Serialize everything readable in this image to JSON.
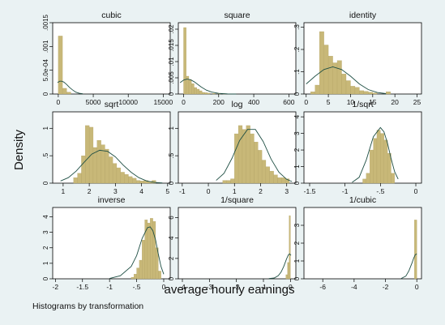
{
  "figure": {
    "ylabel": "Density",
    "xlabel": "average hourly earnings",
    "note": "Histograms by transformation"
  },
  "colors": {
    "page_bg": "#eaf2f3",
    "panel_bg": "#ffffff",
    "bar": "#c8b878",
    "bar_stroke": "#b0a060",
    "curve": "#1f4f44"
  },
  "chart_data": [
    {
      "type": "bar",
      "title": "cubic",
      "xlim": [
        -800,
        16000
      ],
      "ylim": [
        0,
        0.0015
      ],
      "xticks": [
        {
          "v": 0,
          "l": "0"
        },
        {
          "v": 5000,
          "l": "5000"
        },
        {
          "v": 10000,
          "l": "10000"
        },
        {
          "v": 15000,
          "l": "15000"
        }
      ],
      "yticks": [
        {
          "v": 0,
          "l": "0"
        },
        {
          "v": 0.0005,
          "l": "5.0e-04"
        },
        {
          "v": 0.001,
          "l": ".001"
        },
        {
          "v": 0.0015,
          "l": ".0015"
        }
      ],
      "bars": [
        [
          0,
          600,
          0.00122
        ],
        [
          600,
          1200,
          0.00012
        ],
        [
          1200,
          1800,
          4e-05
        ]
      ],
      "curve": {
        "x": [
          -100,
          200,
          500,
          800,
          1200,
          1600,
          2000,
          2500,
          3000,
          3500
        ],
        "y": [
          0.00024,
          0.00027,
          0.00027,
          0.00025,
          0.0002,
          0.00014,
          9e-05,
          4e-05,
          1.5e-05,
          5e-06
        ]
      }
    },
    {
      "type": "bar",
      "title": "square",
      "xlim": [
        -30,
        640
      ],
      "ylim": [
        0,
        0.022
      ],
      "xticks": [
        {
          "v": 0,
          "l": "0"
        },
        {
          "v": 200,
          "l": "200"
        },
        {
          "v": 400,
          "l": "400"
        },
        {
          "v": 600,
          "l": "600"
        }
      ],
      "yticks": [
        {
          "v": 0,
          "l": "0"
        },
        {
          "v": 0.005,
          "l": ".005"
        },
        {
          "v": 0.01,
          "l": ".01"
        },
        {
          "v": 0.015,
          "l": ".015"
        },
        {
          "v": 0.02,
          "l": ".02"
        }
      ],
      "bars": [
        [
          0,
          15,
          0.0205
        ],
        [
          15,
          30,
          0.0055
        ],
        [
          30,
          45,
          0.0045
        ],
        [
          45,
          60,
          0.0032
        ],
        [
          60,
          75,
          0.002
        ],
        [
          75,
          90,
          0.0015
        ],
        [
          90,
          105,
          0.001
        ],
        [
          105,
          120,
          0.0005
        ],
        [
          120,
          135,
          0.0004
        ],
        [
          135,
          150,
          0.0003
        ],
        [
          165,
          180,
          0.0002
        ],
        [
          195,
          210,
          0.0001
        ],
        [
          225,
          240,
          0.0001
        ]
      ],
      "curve": {
        "x": [
          -20,
          0,
          20,
          40,
          60,
          80,
          100,
          130,
          160,
          200,
          250,
          300
        ],
        "y": [
          0.0035,
          0.0043,
          0.0046,
          0.0044,
          0.0038,
          0.003,
          0.0022,
          0.0012,
          0.0006,
          0.0002,
          5e-05,
          1e-05
        ]
      }
    },
    {
      "type": "bar",
      "title": "identity",
      "xlim": [
        -0.5,
        26
      ],
      "ylim": [
        0,
        0.32
      ],
      "xticks": [
        {
          "v": 0,
          "l": "0"
        },
        {
          "v": 5,
          "l": "5"
        },
        {
          "v": 10,
          "l": "10"
        },
        {
          "v": 15,
          "l": "15"
        },
        {
          "v": 20,
          "l": "20"
        },
        {
          "v": 25,
          "l": "25"
        }
      ],
      "yticks": [
        {
          "v": 0,
          "l": "0"
        },
        {
          "v": 0.1,
          "l": ".1"
        },
        {
          "v": 0.2,
          "l": ".2"
        },
        {
          "v": 0.3,
          "l": ".3"
        }
      ],
      "bars": [
        [
          1,
          2,
          0.01
        ],
        [
          2,
          3,
          0.04
        ],
        [
          3,
          4,
          0.28
        ],
        [
          4,
          5,
          0.22
        ],
        [
          5,
          6,
          0.17
        ],
        [
          6,
          7,
          0.14
        ],
        [
          7,
          8,
          0.15
        ],
        [
          8,
          9,
          0.09
        ],
        [
          9,
          10,
          0.06
        ],
        [
          10,
          11,
          0.035
        ],
        [
          11,
          12,
          0.03
        ],
        [
          12,
          13,
          0.015
        ],
        [
          13,
          14,
          0.012
        ],
        [
          14,
          15,
          0.008
        ],
        [
          15,
          16,
          0.005
        ],
        [
          18,
          19,
          0.01
        ]
      ],
      "curve": {
        "x": [
          0,
          2,
          4,
          6,
          8,
          10,
          12,
          14,
          16,
          18
        ],
        "y": [
          0.045,
          0.08,
          0.11,
          0.122,
          0.11,
          0.08,
          0.045,
          0.02,
          0.007,
          0.002
        ]
      }
    },
    {
      "type": "bar",
      "title": "sqrt",
      "xlim": [
        0.6,
        5.1
      ],
      "ylim": [
        0,
        1.3
      ],
      "xticks": [
        {
          "v": 1,
          "l": "1"
        },
        {
          "v": 2,
          "l": "2"
        },
        {
          "v": 3,
          "l": "3"
        },
        {
          "v": 4,
          "l": "4"
        },
        {
          "v": 5,
          "l": "5"
        }
      ],
      "yticks": [
        {
          "v": 0,
          "l": "0"
        },
        {
          "v": 0.5,
          "l": ".5"
        },
        {
          "v": 1,
          "l": "1"
        }
      ],
      "bars": [
        [
          1.4,
          1.55,
          0.1
        ],
        [
          1.55,
          1.7,
          0.18
        ],
        [
          1.7,
          1.85,
          0.5
        ],
        [
          1.85,
          2.0,
          1.05
        ],
        [
          2.0,
          2.15,
          1.02
        ],
        [
          2.15,
          2.3,
          0.65
        ],
        [
          2.3,
          2.45,
          0.78
        ],
        [
          2.45,
          2.6,
          0.7
        ],
        [
          2.6,
          2.75,
          0.62
        ],
        [
          2.75,
          2.9,
          0.48
        ],
        [
          2.9,
          3.05,
          0.36
        ],
        [
          3.05,
          3.2,
          0.28
        ],
        [
          3.2,
          3.35,
          0.2
        ],
        [
          3.35,
          3.5,
          0.16
        ],
        [
          3.5,
          3.65,
          0.12
        ],
        [
          3.65,
          3.8,
          0.09
        ],
        [
          3.8,
          3.95,
          0.05
        ],
        [
          3.95,
          4.1,
          0.04
        ],
        [
          4.1,
          4.25,
          0.05
        ],
        [
          4.25,
          4.4,
          0.03
        ],
        [
          4.4,
          4.55,
          0.05
        ]
      ],
      "curve": {
        "x": [
          0.9,
          1.2,
          1.5,
          1.8,
          2.1,
          2.4,
          2.7,
          3.0,
          3.3,
          3.6,
          3.9,
          4.2,
          4.5,
          4.8
        ],
        "y": [
          0.04,
          0.1,
          0.22,
          0.38,
          0.53,
          0.6,
          0.58,
          0.48,
          0.33,
          0.2,
          0.1,
          0.04,
          0.014,
          0.004
        ]
      }
    },
    {
      "type": "bar",
      "title": "log",
      "xlim": [
        -1.15,
        3.35
      ],
      "ylim": [
        0,
        1.3
      ],
      "xticks": [
        {
          "v": -1,
          "l": "-1"
        },
        {
          "v": 0,
          "l": "0"
        },
        {
          "v": 1,
          "l": "1"
        },
        {
          "v": 2,
          "l": "2"
        },
        {
          "v": 3,
          "l": "3"
        }
      ],
      "yticks": [
        {
          "v": 0,
          "l": "0"
        },
        {
          "v": 0.5,
          "l": ".5"
        },
        {
          "v": 1,
          "l": "1"
        }
      ],
      "bars": [
        [
          0.55,
          0.7,
          0.05
        ],
        [
          0.7,
          0.85,
          0.05
        ],
        [
          0.85,
          1.0,
          0.08
        ],
        [
          1.0,
          1.15,
          0.9
        ],
        [
          1.15,
          1.3,
          1.05
        ],
        [
          1.3,
          1.45,
          0.98
        ],
        [
          1.45,
          1.6,
          1.05
        ],
        [
          1.6,
          1.75,
          0.9
        ],
        [
          1.75,
          1.9,
          0.75
        ],
        [
          1.9,
          2.05,
          0.6
        ],
        [
          2.05,
          2.2,
          0.42
        ],
        [
          2.2,
          2.35,
          0.3
        ],
        [
          2.35,
          2.5,
          0.22
        ],
        [
          2.5,
          2.65,
          0.15
        ],
        [
          2.65,
          2.8,
          0.1
        ],
        [
          2.8,
          2.95,
          0.1
        ],
        [
          2.95,
          3.1,
          0.08
        ]
      ],
      "curve": {
        "x": [
          0.3,
          0.6,
          0.9,
          1.2,
          1.5,
          1.8,
          2.1,
          2.4,
          2.7,
          3.0,
          3.2
        ],
        "y": [
          0.05,
          0.18,
          0.45,
          0.78,
          0.98,
          0.98,
          0.76,
          0.44,
          0.2,
          0.07,
          0.03
        ]
      }
    },
    {
      "type": "bar",
      "title": "1/sqrt",
      "xlim": [
        -1.58,
        0.08
      ],
      "ylim": [
        0,
        4.3
      ],
      "xticks": [
        {
          "v": -1.5,
          "l": "-1.5"
        },
        {
          "v": -1,
          "l": "-1"
        },
        {
          "v": -0.5,
          "l": "-.5"
        },
        {
          "v": 0,
          "l": "0"
        }
      ],
      "yticks": [
        {
          "v": 0,
          "l": "0"
        },
        {
          "v": 1,
          "l": "1"
        },
        {
          "v": 2,
          "l": "2"
        },
        {
          "v": 3,
          "l": "3"
        },
        {
          "v": 4,
          "l": "4"
        }
      ],
      "bars": [
        [
          -0.75,
          -0.7,
          0.25
        ],
        [
          -0.7,
          -0.65,
          0.6
        ],
        [
          -0.65,
          -0.6,
          2.0
        ],
        [
          -0.6,
          -0.55,
          2.7
        ],
        [
          -0.55,
          -0.5,
          3.2
        ],
        [
          -0.5,
          -0.45,
          3.0
        ],
        [
          -0.45,
          -0.4,
          2.6
        ],
        [
          -0.4,
          -0.35,
          1.8
        ],
        [
          -0.35,
          -0.3,
          0.6
        ]
      ],
      "curve": {
        "x": [
          -0.9,
          -0.8,
          -0.7,
          -0.6,
          -0.5,
          -0.45,
          -0.4,
          -0.35,
          -0.3,
          -0.25
        ],
        "y": [
          0.05,
          0.35,
          1.4,
          2.8,
          3.35,
          3.1,
          2.4,
          1.5,
          0.7,
          0.25
        ]
      }
    },
    {
      "type": "bar",
      "title": "inverse",
      "xlim": [
        -2.05,
        0.12
      ],
      "ylim": [
        0,
        4.6
      ],
      "xticks": [
        {
          "v": -2,
          "l": "-2"
        },
        {
          "v": -1.5,
          "l": "-1.5"
        },
        {
          "v": -1,
          "l": "-1"
        },
        {
          "v": -0.5,
          "l": "-.5"
        },
        {
          "v": 0,
          "l": "0"
        }
      ],
      "yticks": [
        {
          "v": 0,
          "l": "0"
        },
        {
          "v": 1,
          "l": "1"
        },
        {
          "v": 2,
          "l": "2"
        },
        {
          "v": 3,
          "l": "3"
        },
        {
          "v": 4,
          "l": "4"
        }
      ],
      "bars": [
        [
          -0.6,
          -0.55,
          0.1
        ],
        [
          -0.55,
          -0.5,
          0.3
        ],
        [
          -0.5,
          -0.45,
          0.7
        ],
        [
          -0.45,
          -0.4,
          1.2
        ],
        [
          -0.4,
          -0.35,
          2.5
        ],
        [
          -0.35,
          -0.3,
          3.8
        ],
        [
          -0.3,
          -0.25,
          3.6
        ],
        [
          -0.25,
          -0.2,
          3.9
        ],
        [
          -0.2,
          -0.15,
          3.7
        ],
        [
          -0.15,
          -0.1,
          2.0
        ],
        [
          -0.1,
          -0.05,
          0.5
        ]
      ],
      "curve": {
        "x": [
          -1.0,
          -0.8,
          -0.6,
          -0.5,
          -0.4,
          -0.3,
          -0.25,
          -0.2,
          -0.15,
          -0.1,
          -0.05,
          0
        ],
        "y": [
          0.02,
          0.2,
          0.8,
          1.5,
          2.6,
          3.3,
          3.35,
          3.1,
          2.5,
          1.6,
          0.8,
          0.3
        ]
      }
    },
    {
      "type": "bar",
      "title": "1/square",
      "xlim": [
        -4.15,
        0.2
      ],
      "ylim": [
        0,
        7
      ],
      "xticks": [
        {
          "v": -4,
          "l": "-4"
        },
        {
          "v": -3,
          "l": "-3"
        },
        {
          "v": -2,
          "l": "-2"
        },
        {
          "v": -1,
          "l": "-1"
        },
        {
          "v": 0,
          "l": "0"
        }
      ],
      "yticks": [
        {
          "v": 0,
          "l": "0"
        },
        {
          "v": 2,
          "l": "2"
        },
        {
          "v": 4,
          "l": "4"
        },
        {
          "v": 6,
          "l": "6"
        }
      ],
      "bars": [
        [
          -0.17,
          -0.11,
          0.4
        ],
        [
          -0.11,
          -0.05,
          1.6
        ],
        [
          -0.05,
          0,
          6.2
        ]
      ],
      "curve": {
        "x": [
          -0.8,
          -0.6,
          -0.45,
          -0.35,
          -0.25,
          -0.15,
          -0.08,
          -0.03,
          0.02
        ],
        "y": [
          0.02,
          0.08,
          0.3,
          0.65,
          1.2,
          1.9,
          2.35,
          2.45,
          2.3
        ]
      }
    },
    {
      "type": "bar",
      "title": "1/cubic",
      "xlim": [
        -7.2,
        0.3
      ],
      "ylim": [
        0,
        4
      ],
      "xticks": [
        {
          "v": -6,
          "l": "-6"
        },
        {
          "v": -4,
          "l": "-4"
        },
        {
          "v": -2,
          "l": "-2"
        },
        {
          "v": 0,
          "l": "0"
        }
      ],
      "yticks": [
        {
          "v": 0,
          "l": "0"
        },
        {
          "v": 1,
          "l": "1"
        },
        {
          "v": 2,
          "l": "2"
        },
        {
          "v": 3,
          "l": "3"
        }
      ],
      "bars": [
        [
          -0.15,
          0,
          3.3
        ]
      ],
      "curve": {
        "x": [
          -1.0,
          -0.7,
          -0.5,
          -0.3,
          -0.2,
          -0.1,
          0
        ],
        "y": [
          0.02,
          0.15,
          0.45,
          0.9,
          1.15,
          1.35,
          1.4
        ]
      }
    }
  ]
}
